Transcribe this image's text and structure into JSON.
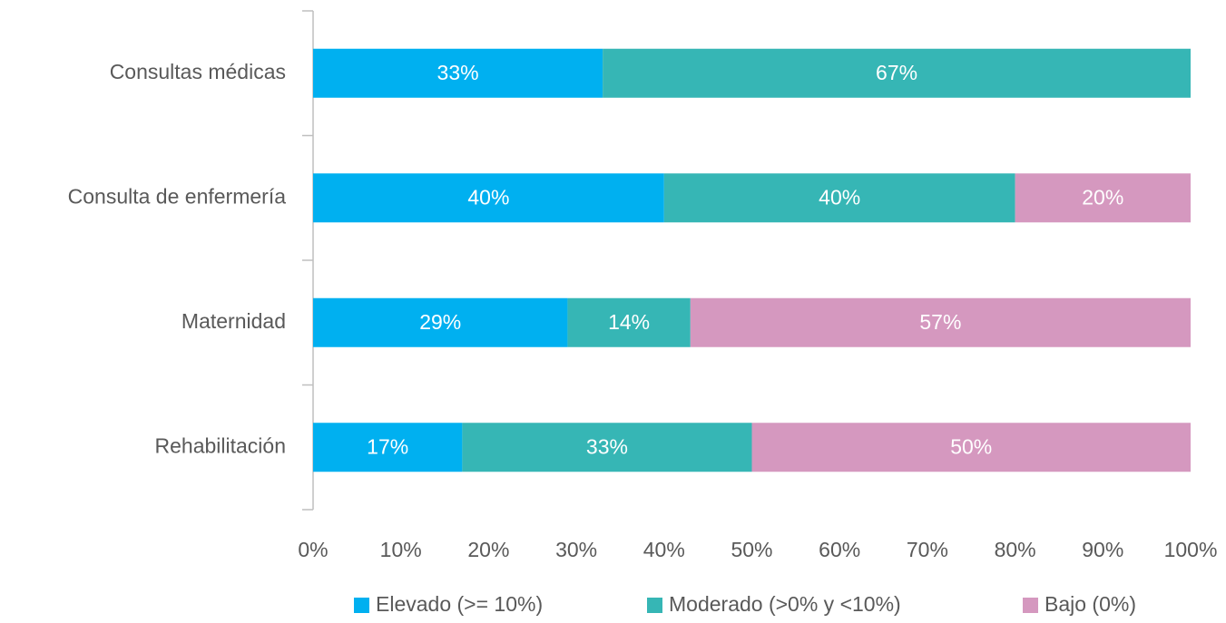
{
  "chart_data": {
    "type": "stacked-bar-horizontal",
    "categories": [
      "Consultas médicas",
      "Consulta de enfermería",
      "Maternidad",
      "Rehabilitación"
    ],
    "series": [
      {
        "name": "Elevado (>= 10%)",
        "color": "#00b0f0",
        "values": [
          33,
          40,
          29,
          17
        ],
        "value_labels": [
          "33%",
          "40%",
          "29%",
          "17%"
        ]
      },
      {
        "name": "Moderado (>0% y <10%)",
        "color": "#36b6b5",
        "values": [
          67,
          40,
          14,
          33
        ],
        "value_labels": [
          "67%",
          "40%",
          "14%",
          "33%"
        ]
      },
      {
        "name": "Bajo (0%)",
        "color": "#d598bf",
        "values": [
          null,
          20,
          57,
          50
        ],
        "value_labels": [
          null,
          "20%",
          "57%",
          "50%"
        ]
      }
    ],
    "xlim": [
      0,
      100
    ],
    "xticks": [
      {
        "value": 0,
        "label": "0%"
      },
      {
        "value": 10,
        "label": "10%"
      },
      {
        "value": 20,
        "label": "20%"
      },
      {
        "value": 30,
        "label": "30%"
      },
      {
        "value": 40,
        "label": "40%"
      },
      {
        "value": 50,
        "label": "50%"
      },
      {
        "value": 60,
        "label": "60%"
      },
      {
        "value": 70,
        "label": "70%"
      },
      {
        "value": 80,
        "label": "80%"
      },
      {
        "value": 90,
        "label": "90%"
      },
      {
        "value": 100,
        "label": "100%"
      }
    ],
    "legend": "bottom"
  }
}
